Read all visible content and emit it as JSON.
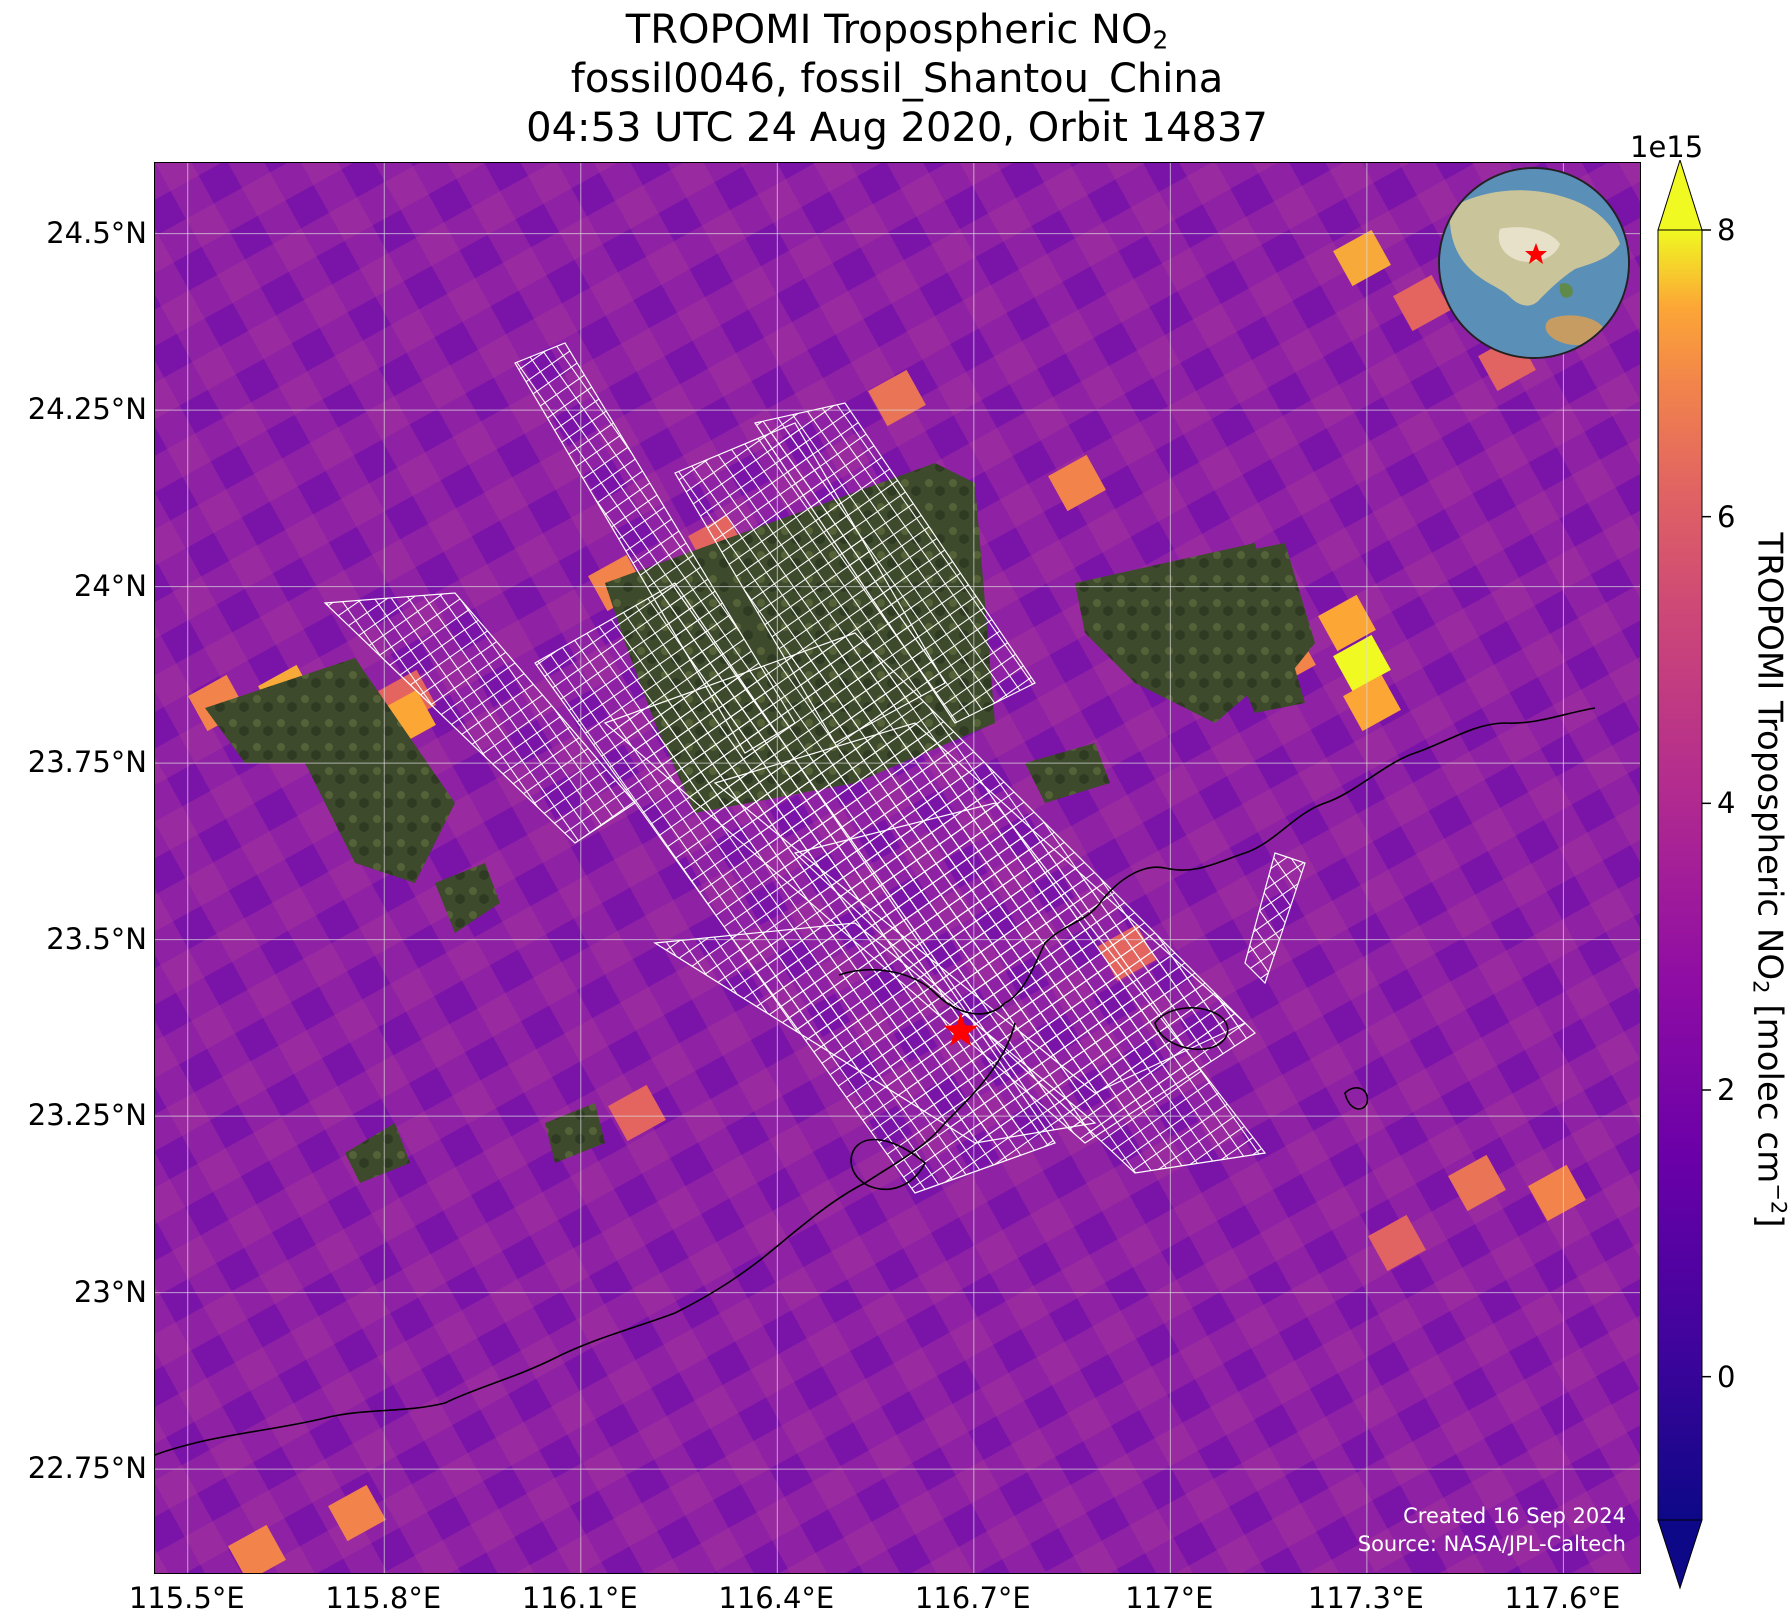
{
  "title": {
    "line1_prefix": "TROPOMI Tropospheric NO",
    "line1_sub": "2",
    "line2": "fossil0046, fossil_Shantou_China",
    "line3": "04:53 UTC 24 Aug 2020, Orbit 14837"
  },
  "map": {
    "lon_range": [
      115.45,
      117.72
    ],
    "lat_range": [
      22.6,
      24.6
    ],
    "lat_ticks": [
      "24.5°N",
      "24.25°N",
      "24°N",
      "23.75°N",
      "23.5°N",
      "23.25°N",
      "23°N",
      "22.75°N"
    ],
    "lat_values": [
      24.5,
      24.25,
      24.0,
      23.75,
      23.5,
      23.25,
      23.0,
      22.75
    ],
    "lon_ticks": [
      "115.5°E",
      "115.8°E",
      "116.1°E",
      "116.4°E",
      "116.7°E",
      "117°E",
      "117.3°E",
      "117.6°E"
    ],
    "lon_values": [
      115.5,
      115.8,
      116.1,
      116.4,
      116.7,
      117.0,
      117.3,
      117.6
    ],
    "target": {
      "name": "fossil_Shantou_China",
      "lon": 116.68,
      "lat": 23.37,
      "marker": "red-star"
    },
    "colors": {
      "background": "#8a1ea6",
      "grid": "#dddddd",
      "coast": "#000000",
      "overpass": "#ffffff"
    }
  },
  "colorbar": {
    "label_prefix": "TROPOMI Tropospheric NO",
    "label_sub": "2",
    "label_mid": " [molec cm",
    "label_sup": "−2",
    "label_suffix": "]",
    "exponent": "1e15",
    "range": [
      -1,
      8
    ],
    "ticks": [
      "8",
      "6",
      "4",
      "2",
      "0"
    ],
    "tick_values": [
      8,
      6,
      4,
      2,
      0
    ],
    "cmap": "plasma",
    "extend": "both"
  },
  "credit": {
    "created": "Created 16 Sep 2024",
    "source": "Source: NASA/JPL-Caltech"
  },
  "inset": {
    "type": "globe",
    "marker": "red-star",
    "region": "East Asia"
  }
}
